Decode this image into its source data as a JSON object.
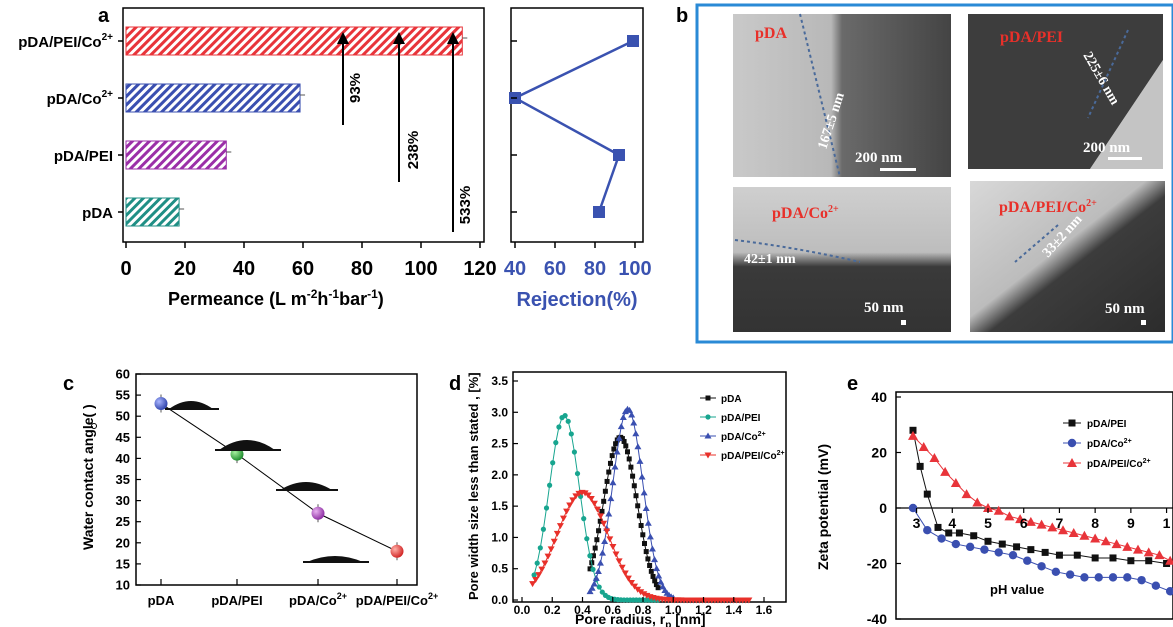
{
  "colors": {
    "red": "#e8343a",
    "blue": "#3a4fb0",
    "purple": "#9b2fa8",
    "teal": "#1f8f85",
    "navy": "#3a52b0",
    "frame": "#2a8ad6",
    "label_red": "#e8302a",
    "black": "#111111",
    "green": "#17a58f",
    "down_red": "#e8302a"
  },
  "chart_data": [
    {
      "panel": "a",
      "type": "bar",
      "orientation": "horizontal",
      "categories": [
        "pDA/PEI/Co²⁺",
        "pDA/Co²⁺",
        "pDA/PEI",
        "pDA"
      ],
      "values": [
        114,
        59,
        34,
        18
      ],
      "xlim": [
        0,
        120
      ],
      "xticks": [
        "0",
        "20",
        "40",
        "60",
        "80",
        "100",
        "120"
      ],
      "xlabel_main": "Permeance (L m",
      "xlabel_parts": [
        "-2",
        "h",
        "-1",
        "bar",
        "-1",
        ")"
      ],
      "annotations": [
        "93%",
        "238%",
        "533%"
      ]
    },
    {
      "panel": "a-rejection",
      "type": "line",
      "categories": [
        "pDA/PEI/Co²⁺",
        "pDA/Co²⁺",
        "pDA/PEI",
        "pDA"
      ],
      "values": [
        99,
        40,
        92,
        82
      ],
      "xlim": [
        38,
        104
      ],
      "xticks": [
        "40",
        "60",
        "80",
        "100"
      ],
      "xlabel": "Rejection(%)"
    },
    {
      "panel": "c",
      "type": "line",
      "categories": [
        "pDA",
        "pDA/PEI",
        "pDA/Co²⁺",
        "pDA/PEI/Co²⁺"
      ],
      "values": [
        53,
        41,
        27,
        18
      ],
      "ylim": [
        10,
        60
      ],
      "yticks": [
        "10",
        "15",
        "20",
        "25",
        "30",
        "35",
        "40",
        "45",
        "50",
        "55",
        "60"
      ],
      "ylabel": "Water contact angle(  )"
    },
    {
      "panel": "d",
      "type": "line",
      "xlim": [
        0.0,
        1.6
      ],
      "ylim": [
        0.0,
        3.5
      ],
      "xticks": [
        "0.0",
        "0.2",
        "0.4",
        "0.6",
        "0.8",
        "1.0",
        "1.2",
        "1.4",
        "1.6"
      ],
      "yticks": [
        "0.0",
        "0.5",
        "1.0",
        "1.5",
        "2.0",
        "2.5",
        "3.0",
        "3.5"
      ],
      "xlabel": "Pore radius, r",
      "xlabel_sub": "p",
      "xlabel_unit": " [nm]",
      "ylabel": "Pore width size less than stated , [%]",
      "series": [
        {
          "name": "pDA",
          "mu": 0.65,
          "sigma": 0.11,
          "peak": 2.6,
          "x": [
            0.45,
            0.9
          ]
        },
        {
          "name": "pDA/PEI",
          "mu": 0.28,
          "sigma": 0.1,
          "peak": 2.95,
          "x": [
            0.08,
            0.9
          ]
        },
        {
          "name": "pDA/Co²⁺",
          "mu": 0.7,
          "sigma": 0.1,
          "peak": 3.05,
          "x": [
            0.45,
            1.0
          ]
        },
        {
          "name": "pDA/PEI/Co²⁺",
          "mu": 0.4,
          "sigma": 0.17,
          "peak": 1.72,
          "x": [
            0.07,
            1.5
          ]
        }
      ]
    },
    {
      "panel": "e",
      "type": "line",
      "ylim": [
        -40,
        40
      ],
      "xlim": [
        2.7,
        10.2
      ],
      "yticks": [
        "40",
        "20",
        "0",
        "-20",
        "-40"
      ],
      "xticks": [
        "3",
        "4",
        "5",
        "6",
        "7",
        "8",
        "9",
        "1"
      ],
      "ylabel": "Zeta potential (mV)",
      "xlabel": "pH value",
      "series": [
        {
          "name": "pDA/PEI",
          "x": [
            2.9,
            3.1,
            3.3,
            3.6,
            3.9,
            4.2,
            4.6,
            5.0,
            5.4,
            5.8,
            6.2,
            6.6,
            7.0,
            7.5,
            8.0,
            8.5,
            9.0,
            9.5,
            10.0
          ],
          "y": [
            28,
            15,
            5,
            -7,
            -9,
            -9,
            -10,
            -12,
            -13,
            -14,
            -15,
            -16,
            -17,
            -17,
            -18,
            -18,
            -19,
            -19,
            -20
          ]
        },
        {
          "name": "pDA/Co²⁺",
          "x": [
            2.9,
            3.3,
            3.7,
            4.1,
            4.5,
            4.9,
            5.3,
            5.7,
            6.1,
            6.5,
            6.9,
            7.3,
            7.7,
            8.1,
            8.5,
            8.9,
            9.3,
            9.7,
            10.1
          ],
          "y": [
            0,
            -8,
            -11,
            -13,
            -14,
            -15,
            -16,
            -17,
            -19,
            -21,
            -23,
            -24,
            -25,
            -25,
            -25,
            -25,
            -26,
            -28,
            -30
          ]
        },
        {
          "name": "pDA/PEI/Co²⁺",
          "x": [
            2.9,
            3.2,
            3.5,
            3.8,
            4.1,
            4.4,
            4.7,
            5.0,
            5.3,
            5.6,
            5.9,
            6.2,
            6.5,
            6.8,
            7.1,
            7.4,
            7.7,
            8.0,
            8.3,
            8.6,
            8.9,
            9.2,
            9.5,
            9.8,
            10.1
          ],
          "y": [
            26,
            22,
            18,
            13,
            9,
            5,
            2,
            0,
            -1,
            -3,
            -4,
            -5,
            -6,
            -7,
            -8,
            -9,
            -10,
            -11,
            -12,
            -13,
            -14,
            -15,
            -16,
            -17,
            -19
          ]
        }
      ]
    }
  ],
  "panels": {
    "a": "a",
    "b": "b",
    "c": "c",
    "d": "d",
    "e": "e"
  },
  "tem": {
    "labels": [
      "pDA",
      "pDA/PEI",
      "pDA/Co",
      "pDA/PEI/Co"
    ],
    "label_sup": "2+",
    "thickness": [
      "167±5 nm",
      "225±6 nm",
      "42±1 nm",
      "33±2 nm"
    ],
    "scale": [
      "200 nm",
      "200 nm",
      "50 nm",
      "50 nm"
    ]
  }
}
